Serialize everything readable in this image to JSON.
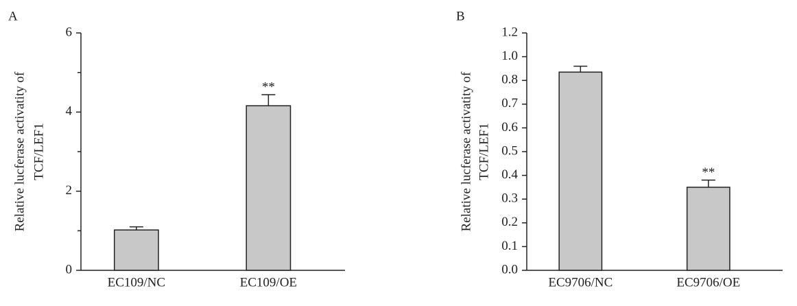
{
  "chart_data": [
    {
      "type": "bar",
      "panel": "A",
      "ylabel": [
        "Relative lucferase activatity of",
        "TCF/LEF1"
      ],
      "categories": [
        "EC109/NC",
        "EC109/OE"
      ],
      "values": [
        1.02,
        4.16
      ],
      "errors": [
        0.08,
        0.28
      ],
      "annotations": [
        null,
        "**"
      ],
      "color": "#c8c8c8",
      "ylim": [
        0,
        6
      ],
      "yticks": [
        0,
        2,
        4,
        6
      ],
      "yminorticks": [
        1,
        3,
        5
      ]
    },
    {
      "type": "bar",
      "panel": "B",
      "ylabel": [
        "Relative lucferase activatity of",
        "TCF/LEF1"
      ],
      "categories": [
        "EC9706/NC",
        "EC9706/OE"
      ],
      "values": [
        0.87,
        0.35
      ],
      "errors": [
        0.05,
        0.03
      ],
      "annotations": [
        null,
        "**"
      ],
      "color": "#c8c8c8",
      "ylim": [
        0,
        1.2
      ],
      "yticks": [
        {
          "value": 0,
          "label": "0.0"
        },
        {
          "value": 0.1,
          "label": "0.1"
        },
        {
          "value": 0.2,
          "label": "0.2"
        },
        {
          "value": 0.3,
          "label": "0.3"
        },
        {
          "value": 0.4,
          "label": "0.4"
        },
        {
          "value": 0.5,
          "label": "0.5"
        },
        {
          "value": 0.6,
          "label": "0.6"
        },
        {
          "value": 0.7,
          "label": "0.7"
        },
        {
          "value": 0.8,
          "label": "0.8"
        },
        {
          "value": 1.0,
          "label": "1.0"
        },
        {
          "value": 1.2,
          "label": "1.2"
        }
      ]
    }
  ]
}
